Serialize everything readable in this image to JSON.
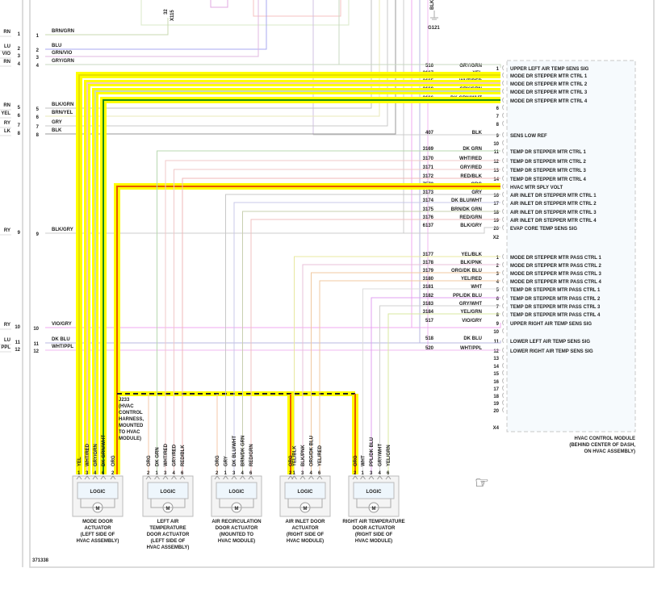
{
  "wire_colors": {
    "YEL": "#e8e000",
    "WHT/RED": "#f2c8c8",
    "GRY/GRN": "#c8d8c0",
    "DK GRN/WHT": "#1a8a1a",
    "ORG": "#e85a00",
    "GRY": "#c8c8c8",
    "BLK": "#999999",
    "DK GRN": "#b8d8b0",
    "GRY/RED": "#f0c8c8",
    "RED/BLK": "#f0b8b8",
    "DK BLU/WHT": "#c8c8e8",
    "BRN/DK GRN": "#c8d0b0",
    "RED/GRN": "#f0c0c0",
    "BLK/GRY": "#cccccc",
    "YEL/BLK": "#e8e8a0",
    "BLK/PNK": "#e8c0d8",
    "ORG/DK BLU": "#f0c8a0",
    "YEL/RED": "#f0c8a0",
    "WHT": "#dddddd",
    "PPL/DK BLU": "#e0a0f0",
    "GRY/WHT": "#d0d0d0",
    "YEL/GRN": "#d8e8a0",
    "VIO/GRY": "#f0a8f0",
    "DK BLU": "#b8b8e0",
    "WHT/PPL": "#f0b8f0",
    "BRN/GRN": "#c8d8b0",
    "BLU": "#a8a8f0",
    "GRN/VIO": "#e0b8e0",
    "BLK/GRN": "#c0c0c0",
    "BRN/YEL": "#e8e8b8",
    "highlight": "#ffff00"
  },
  "top": {
    "splice_pin": "32",
    "splice_name": "X115",
    "ground_wire": "BLK",
    "ground_name": "G121"
  },
  "left_edge_labels": [
    {
      "pin": "1",
      "text": "RN"
    },
    {
      "pin": "2",
      "text": "LU"
    },
    {
      "pin": "3",
      "text": "VIO"
    },
    {
      "pin": "4",
      "text": "RN"
    },
    {
      "pin": "5",
      "text": "RN"
    },
    {
      "pin": "6",
      "text": "YEL"
    },
    {
      "pin": "7",
      "text": "RY"
    },
    {
      "pin": "8",
      "text": "LK"
    },
    {
      "pin": "9",
      "text": "RY"
    },
    {
      "pin": "10",
      "text": "RY"
    },
    {
      "pin": "11",
      "text": "LU"
    },
    {
      "pin": "12",
      "text": "PPL"
    }
  ],
  "left_connector": [
    {
      "pin": "1",
      "color": "BRN/GRN"
    },
    {
      "pin": "2",
      "color": "BLU"
    },
    {
      "pin": "3",
      "color": "GRN/VIO"
    },
    {
      "pin": "4",
      "color": "GRY/GRN"
    },
    {
      "pin": "5",
      "color": "BLK/GRN"
    },
    {
      "pin": "6",
      "color": "BRN/YEL"
    },
    {
      "pin": "7",
      "color": "GRY"
    },
    {
      "pin": "8",
      "color": "BLK"
    },
    {
      "pin": "9",
      "color": "BLK/GRY"
    },
    {
      "pin": "10",
      "color": "VIO/GRY"
    },
    {
      "pin": "11",
      "color": "DK BLU"
    },
    {
      "pin": "12",
      "color": "WHT/PPL"
    }
  ],
  "module": {
    "name": "HVAC CONTROL MODULE",
    "location_1": "(BEHIND CENTER OF DASH,",
    "location_2": "ON HVAC ASSEMBLY)",
    "x2_label": "X2",
    "x4_label": "X4",
    "x2": [
      {
        "pin": "1",
        "circuit": "516",
        "color": "GRY/GRN",
        "func": "UPPER LEFT AIR TEMP SENS SIG"
      },
      {
        "pin": "2",
        "circuit": "3167",
        "color": "YEL",
        "func": "MODE DR STEPPER MTR CTRL 1"
      },
      {
        "pin": "3",
        "circuit": "3165",
        "color": "WHT/RED",
        "func": "MODE DR STEPPER MTR CTRL 2"
      },
      {
        "pin": "4",
        "circuit": "3168",
        "color": "GRY/GRN",
        "func": "MODE DR STEPPER MTR CTRL 3"
      },
      {
        "pin": "5",
        "circuit": "3166",
        "color": "DK GRN/WHT",
        "func": "MODE DR STEPPER MTR CTRL 4"
      },
      {
        "pin": "6",
        "circuit": "",
        "color": "",
        "func": ""
      },
      {
        "pin": "7",
        "circuit": "",
        "color": "",
        "func": ""
      },
      {
        "pin": "8",
        "circuit": "",
        "color": "",
        "func": ""
      },
      {
        "pin": "9",
        "circuit": "407",
        "color": "BLK",
        "func": "SENS LOW REF"
      },
      {
        "pin": "10",
        "circuit": "",
        "color": "",
        "func": ""
      },
      {
        "pin": "11",
        "circuit": "3169",
        "color": "DK GRN",
        "func": "TEMP DR STEPPER MTR CTRL 1"
      },
      {
        "pin": "12",
        "circuit": "3170",
        "color": "WHT/RED",
        "func": "TEMP DR STEPPER MTR CTRL 2"
      },
      {
        "pin": "13",
        "circuit": "3171",
        "color": "GRY/RED",
        "func": "TEMP DR STEPPER MTR CTRL 3"
      },
      {
        "pin": "14",
        "circuit": "3172",
        "color": "RED/BLK",
        "func": "TEMP DR STEPPER MTR CTRL 4"
      },
      {
        "pin": "15",
        "circuit": "7573",
        "color": "ORG",
        "func": "HVAC MTR SPLY VOLT"
      },
      {
        "pin": "16",
        "circuit": "3173",
        "color": "GRY",
        "func": "AIR INLET DR STEPPER MTR CTRL 1"
      },
      {
        "pin": "17",
        "circuit": "3174",
        "color": "DK BLU/WHT",
        "func": "AIR INLET DR STEPPER MTR CTRL 2"
      },
      {
        "pin": "18",
        "circuit": "3175",
        "color": "BRN/DK GRN",
        "func": "AIR INLET DR STEPPER MTR CTRL 3"
      },
      {
        "pin": "19",
        "circuit": "3176",
        "color": "RED/GRN",
        "func": "AIR INLET DR STEPPER MTR CTRL 4"
      },
      {
        "pin": "20",
        "circuit": "6137",
        "color": "BLK/GRY",
        "func": "EVAP CORE TEMP SENS SIG"
      }
    ],
    "x4": [
      {
        "pin": "1",
        "circuit": "3177",
        "color": "YEL/BLK",
        "func": "MODE DR STEPPER MTR PASS CTRL 1"
      },
      {
        "pin": "2",
        "circuit": "3178",
        "color": "BLK/PNK",
        "func": "MODE DR STEPPER MTR PASS CTRL 2"
      },
      {
        "pin": "3",
        "circuit": "3179",
        "color": "ORG/DK BLU",
        "func": "MODE DR STEPPER MTR PASS CTRL 3"
      },
      {
        "pin": "4",
        "circuit": "3180",
        "color": "YEL/RED",
        "func": "MODE DR STEPPER MTR PASS CTRL 4"
      },
      {
        "pin": "5",
        "circuit": "3181",
        "color": "WHT",
        "func": "TEMP DR STEPPER MTR PASS CTRL 1"
      },
      {
        "pin": "6",
        "circuit": "3182",
        "color": "PPL/DK BLU",
        "func": "TEMP DR STEPPER MTR PASS CTRL 2"
      },
      {
        "pin": "7",
        "circuit": "3183",
        "color": "GRY/WHT",
        "func": "TEMP DR STEPPER MTR PASS CTRL 3"
      },
      {
        "pin": "8",
        "circuit": "3184",
        "color": "YEL/GRN",
        "func": "TEMP DR STEPPER MTR PASS CTRL 4"
      },
      {
        "pin": "9",
        "circuit": "517",
        "color": "VIO/GRY",
        "func": "UPPER RIGHT AIR TEMP SENS SIG"
      },
      {
        "pin": "10",
        "circuit": "",
        "color": "",
        "func": ""
      },
      {
        "pin": "11",
        "circuit": "518",
        "color": "DK BLU",
        "func": "LOWER LEFT AIR TEMP SENS SIG"
      },
      {
        "pin": "12",
        "circuit": "520",
        "color": "WHT/PPL",
        "func": "LOWER RIGHT AIR TEMP SENS SIG"
      },
      {
        "pin": "13",
        "circuit": "",
        "color": "",
        "func": ""
      },
      {
        "pin": "14",
        "circuit": "",
        "color": "",
        "func": ""
      },
      {
        "pin": "15",
        "circuit": "",
        "color": "",
        "func": ""
      },
      {
        "pin": "16",
        "circuit": "",
        "color": "",
        "func": ""
      },
      {
        "pin": "17",
        "circuit": "",
        "color": "",
        "func": ""
      },
      {
        "pin": "18",
        "circuit": "",
        "color": "",
        "func": ""
      },
      {
        "pin": "19",
        "circuit": "",
        "color": "",
        "func": ""
      },
      {
        "pin": "20",
        "circuit": "",
        "color": "",
        "func": ""
      }
    ]
  },
  "splice": {
    "name": "J233",
    "lines": [
      "(HVAC",
      "CONTROL",
      "HARNESS,",
      "MOUNTED",
      "TO HVAC",
      "MODULE)"
    ]
  },
  "actuators": [
    {
      "logic": "LOGIC",
      "motor": "M",
      "name": [
        "MODE DOOR",
        "ACTUATOR",
        "(LEFT SIDE OF",
        "HVAC ASSEMBLY)"
      ],
      "pins": [
        {
          "pin": "1",
          "color": "YEL"
        },
        {
          "pin": "3",
          "color": "WHT/RED"
        },
        {
          "pin": "4",
          "color": "GRY/GRN"
        },
        {
          "pin": "6",
          "color": "DK GRN/WHT"
        },
        {
          "pin": "2",
          "color": "ORG"
        }
      ]
    },
    {
      "logic": "LOGIC",
      "motor": "M",
      "name": [
        "LEFT AIR",
        "TEMPERATURE",
        "DOOR ACTUATOR",
        "(LEFT SIDE OF",
        "HVAC ASSEMBLY)"
      ],
      "pins": [
        {
          "pin": "2",
          "color": "ORG"
        },
        {
          "pin": "1",
          "color": "DK GRN"
        },
        {
          "pin": "3",
          "color": "WHT/RED"
        },
        {
          "pin": "4",
          "color": "GRY/RED"
        },
        {
          "pin": "6",
          "color": "RED/BLK"
        }
      ]
    },
    {
      "logic": "LOGIC",
      "motor": "M",
      "name": [
        "AIR RECIRCULATION",
        "DOOR ACTUATOR",
        "(MOUNTED TO",
        "HVAC MODULE)"
      ],
      "pins": [
        {
          "pin": "2",
          "color": "ORG"
        },
        {
          "pin": "1",
          "color": "GRY"
        },
        {
          "pin": "3",
          "color": "DK BLU/WHT"
        },
        {
          "pin": "4",
          "color": "BRN/DK GRN"
        },
        {
          "pin": "6",
          "color": "RED/GRN"
        }
      ]
    },
    {
      "logic": "LOGIC",
      "motor": "M",
      "name": [
        "AIR INLET DOOR",
        "ACTUATOR",
        "(RIGHT SIDE OF",
        "HVAC MODULE)"
      ],
      "pins": [
        {
          "pin": "2",
          "color": "ORG"
        },
        {
          "pin": "1",
          "color": "YEL/BLK"
        },
        {
          "pin": "3",
          "color": "BLK/PNK"
        },
        {
          "pin": "4",
          "color": "ORG/DK BLU"
        },
        {
          "pin": "6",
          "color": "YEL/RED"
        }
      ]
    },
    {
      "logic": "LOGIC",
      "motor": "M",
      "name": [
        "RIGHT AIR TEMPERATURE",
        "DOOR ACTUATOR",
        "(RIGHT SIDE OF",
        "HVAC MODULE)"
      ],
      "pins": [
        {
          "pin": "2",
          "color": "ORG"
        },
        {
          "pin": "1",
          "color": "WHT"
        },
        {
          "pin": "3",
          "color": "PPL/DK BLU"
        },
        {
          "pin": "4",
          "color": "GRY/WHT"
        },
        {
          "pin": "6",
          "color": "YEL/GRN"
        }
      ]
    }
  ],
  "figure_id": "371338",
  "cursor_icon": "hand-pointer-icon"
}
